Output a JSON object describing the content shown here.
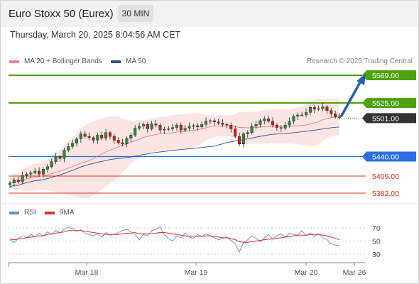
{
  "header": {
    "title": "Euro Stoxx 50 (Eurex)",
    "timeframe": "30 MIN",
    "datetime": "Thursday, March 20, 2025 8:04:56 AM CET"
  },
  "legend": {
    "ma20": "MA 20 + Bollinger Bands",
    "ma50": "MA 50",
    "credit": "Research © 2025 Trading Central"
  },
  "rsi_legend": {
    "rsi": "RSI",
    "ma": "9MA"
  },
  "colors": {
    "resistance": "#4ca40c",
    "support": "#2d6de0",
    "support_minor": "#e0301e",
    "current": "#333333",
    "candle_up": "#2a8a3a",
    "candle_down": "#cc1f1f",
    "ma20": "#f08080",
    "ma50": "#2c4f8a",
    "bollinger": "#fde0df",
    "arrow": "#2b60a8",
    "rsi": "#5b8fd9",
    "rsi_ma": "#e0301e"
  },
  "chart_data": [
    {
      "type": "candlestick",
      "ylim": [
        5372,
        5580
      ],
      "x_ticks": [
        "Mar 18",
        "Mar 19",
        "Mar 20",
        "Mar 26"
      ],
      "levels": [
        {
          "label": "5569.00",
          "value": 5569,
          "kind": "resistance"
        },
        {
          "label": "5525.00",
          "value": 5525,
          "kind": "resistance"
        },
        {
          "label": "5501.00",
          "value": 5501,
          "kind": "current"
        },
        {
          "label": "5440.00",
          "value": 5440,
          "kind": "support"
        },
        {
          "label": "5409.00",
          "value": 5409,
          "kind": "support_minor"
        },
        {
          "label": "5382.00",
          "value": 5382,
          "kind": "support_minor"
        }
      ],
      "forecast_target": 5569,
      "closes": [
        5398,
        5403,
        5400,
        5410,
        5412,
        5414,
        5417,
        5412,
        5420,
        5424,
        5432,
        5440,
        5437,
        5450,
        5456,
        5461,
        5468,
        5476,
        5472,
        5470,
        5466,
        5474,
        5469,
        5478,
        5472,
        5466,
        5462,
        5460,
        5469,
        5474,
        5485,
        5488,
        5491,
        5484,
        5492,
        5490,
        5482,
        5483,
        5484,
        5486,
        5490,
        5482,
        5485,
        5488,
        5489,
        5487,
        5491,
        5496,
        5497,
        5495,
        5493,
        5491,
        5490,
        5484,
        5472,
        5460,
        5476,
        5478,
        5488,
        5491,
        5497,
        5500,
        5496,
        5490,
        5486,
        5485,
        5490,
        5496,
        5504,
        5506,
        5506,
        5510,
        5518,
        5515,
        5516,
        5519,
        5513,
        5508,
        5503,
        5503
      ]
    },
    {
      "type": "line",
      "title": "RSI",
      "ylim": [
        25,
        80
      ],
      "y_ticks": [
        70,
        50,
        30
      ],
      "series": [
        {
          "name": "RSI",
          "values": [
            52,
            48,
            54,
            58,
            55,
            60,
            57,
            62,
            58,
            64,
            60,
            66,
            63,
            68,
            71,
            69,
            65,
            67,
            62,
            60,
            58,
            61,
            56,
            63,
            59,
            60,
            63,
            66,
            68,
            64,
            60,
            52,
            60,
            58,
            66,
            68,
            72,
            60,
            54,
            50,
            58,
            55,
            62,
            56,
            54,
            60,
            57,
            61,
            58,
            55,
            52,
            54,
            56,
            51,
            46,
            33,
            48,
            52,
            58,
            54,
            49,
            55,
            60,
            53,
            58,
            61,
            56,
            62,
            60,
            59,
            66,
            58,
            62,
            57,
            61,
            55,
            52,
            46,
            44,
            43
          ]
        },
        {
          "name": "9MA",
          "values": [
            53,
            52,
            53,
            54,
            55,
            56,
            57,
            58,
            58,
            60,
            61,
            62,
            63,
            64,
            66,
            66,
            66,
            66,
            65,
            64,
            63,
            62,
            61,
            60,
            60,
            60,
            60,
            61,
            62,
            62,
            63,
            61,
            61,
            61,
            61,
            62,
            63,
            63,
            62,
            61,
            60,
            59,
            58,
            57,
            57,
            57,
            57,
            58,
            58,
            57,
            56,
            55,
            55,
            54,
            52,
            49,
            48,
            48,
            49,
            50,
            51,
            52,
            53,
            53,
            54,
            55,
            56,
            57,
            58,
            59,
            59,
            59,
            60,
            60,
            60,
            59,
            58,
            56,
            54,
            52
          ]
        }
      ]
    }
  ]
}
